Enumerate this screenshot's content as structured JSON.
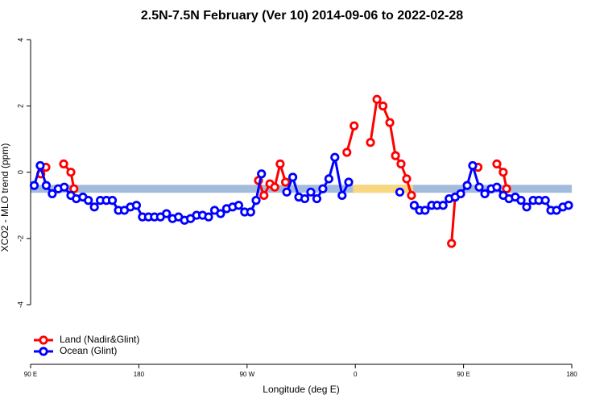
{
  "chart_data": {
    "type": "line",
    "title": "2.5N-7.5N February (Ver 10)   2014-09-06 to 2022-02-28",
    "x_label": "Longitude (deg E)",
    "y_label": "XCO2 - MLO trend (ppm)",
    "xlim": [
      90,
      540
    ],
    "xticks": [
      {
        "value": 90,
        "label": "90 E"
      },
      {
        "value": 180,
        "label": "180"
      },
      {
        "value": 270,
        "label": "90 W"
      },
      {
        "value": 360,
        "label": "0"
      },
      {
        "value": 450,
        "label": "90 E"
      },
      {
        "value": 540,
        "label": "180"
      }
    ],
    "ylim": [
      -5.8,
      4.3
    ],
    "yticks": [
      -4,
      -2,
      0,
      2,
      4
    ],
    "band": {
      "ylim": [
        -0.62,
        -0.38
      ],
      "color": "#a4bcdc",
      "highlight_xlim": [
        358,
        408
      ],
      "highlight_color": "#f9d77e"
    },
    "legend": "bottom-left",
    "series": [
      {
        "name": "Land (Nadir&Glint)",
        "color": "#ff0000",
        "x": [
          98.5,
          102.7,
          110,
          117.5,
          123.5,
          126,
          198.5,
          279.5,
          284,
          289,
          293,
          297.5,
          302,
          332,
          353,
          359,
          366,
          372.6,
          378,
          383,
          388.7,
          393.4,
          398,
          402.7,
          406.7,
          426,
          440,
          443,
          453,
          462,
          470,
          477.7,
          483,
          485.8
        ],
        "values": [
          -0.05,
          0.15,
          null,
          0.25,
          0.0,
          -0.5,
          null,
          -0.25,
          -0.7,
          -0.35,
          -0.45,
          0.25,
          -0.3,
          null,
          0.6,
          1.4,
          null,
          0.9,
          2.2,
          2.0,
          1.5,
          0.5,
          0.25,
          -0.2,
          -0.7,
          null,
          -2.15,
          -0.75,
          null,
          0.15,
          null,
          0.25,
          0.0,
          -0.5
        ]
      },
      {
        "name": "Ocean (Glint)",
        "color": "#0000ff",
        "x": [
          93,
          98,
          103,
          108,
          113,
          118,
          123.5,
          128,
          133.5,
          138,
          143,
          148,
          153,
          158,
          163,
          168,
          173,
          178,
          183,
          188,
          193,
          198,
          203,
          208,
          213,
          218,
          223,
          228,
          233,
          238,
          243,
          248,
          253,
          258,
          263,
          268,
          273,
          277.5,
          282,
          285.5,
          303,
          308,
          313,
          318,
          323,
          328,
          333,
          338,
          343,
          349,
          354.5,
          372.6,
          397,
          402.7,
          409,
          413.4,
          418,
          423.5,
          428,
          433,
          438,
          443,
          447.6,
          453,
          457.6,
          463,
          467.7,
          473,
          477.7,
          483,
          487.8,
          493,
          497.8,
          502.5,
          507.9,
          512.6,
          518,
          522.6,
          527.3,
          532.6,
          537.3
        ],
        "values": [
          -0.4,
          0.2,
          -0.4,
          -0.65,
          -0.5,
          -0.45,
          -0.7,
          -0.8,
          -0.75,
          -0.85,
          -1.05,
          -0.85,
          -0.85,
          -0.85,
          -1.15,
          -1.15,
          -1.05,
          -1.0,
          -1.35,
          -1.35,
          -1.35,
          -1.35,
          -1.25,
          -1.4,
          -1.35,
          -1.45,
          -1.4,
          -1.3,
          -1.3,
          -1.35,
          -1.15,
          -1.25,
          -1.1,
          -1.05,
          -1.0,
          -1.2,
          -1.2,
          -0.85,
          -0.05,
          null,
          -0.6,
          -0.15,
          -0.75,
          -0.8,
          -0.6,
          -0.8,
          -0.5,
          -0.2,
          0.45,
          -0.7,
          -0.3,
          null,
          -0.6,
          null,
          -1.0,
          -1.15,
          -1.15,
          -1.0,
          -1.0,
          -1.0,
          -0.8,
          -0.75,
          -0.65,
          -0.4,
          0.2,
          -0.45,
          -0.65,
          -0.5,
          -0.45,
          -0.7,
          -0.8,
          -0.75,
          -0.85,
          -1.05,
          -0.85,
          -0.85,
          -0.85,
          -1.15,
          -1.15,
          -1.05,
          -1.0
        ]
      }
    ]
  }
}
